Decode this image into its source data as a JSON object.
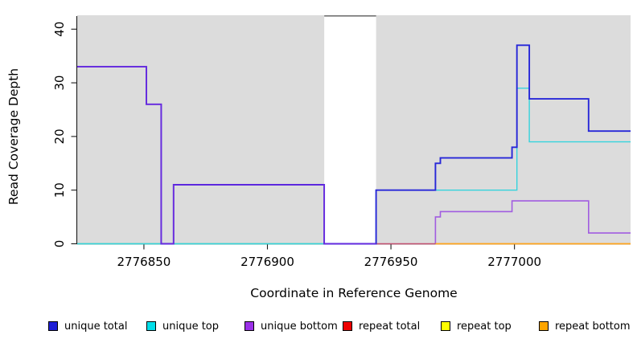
{
  "figure": {
    "x_axis_title": "Coordinate in Reference Genome",
    "y_axis_title": "Read Coverage Depth"
  },
  "legend": {
    "items": [
      {
        "label": "unique total",
        "color": "#1f1fd6"
      },
      {
        "label": "unique top",
        "color": "#00dde8"
      },
      {
        "label": "unique bottom",
        "color": "#9b30e8"
      },
      {
        "label": "repeat total",
        "color": "#ee0000"
      },
      {
        "label": "repeat top",
        "color": "#ffff00"
      },
      {
        "label": "repeat bottom",
        "color": "#ffa500"
      }
    ],
    "item_x": [
      60,
      182,
      304,
      426,
      548,
      670
    ]
  },
  "chart_data": {
    "type": "line",
    "subtype": "step-coverage",
    "title": "",
    "xlabel": "Coordinate in Reference Genome",
    "ylabel": "Read Coverage Depth",
    "xlim": [
      2776823,
      2777047
    ],
    "ylim": [
      0,
      40
    ],
    "x_ticks": [
      2776850,
      2776900,
      2776950,
      2777000
    ],
    "x_tick_labels": [
      "2776850",
      "2776900",
      "2776950",
      "2777000"
    ],
    "y_ticks": [
      0,
      10,
      20,
      30,
      40
    ],
    "y_tick_labels": [
      "0",
      "10",
      "20",
      "30",
      "40"
    ],
    "grid": false,
    "legend_position": "bottom",
    "background": {
      "plot_fill": "#dcdcdc",
      "gap_band": {
        "x_start": 2776923,
        "x_end": 2776944,
        "fill": "#ffffff",
        "top_edge_color": "#737373"
      }
    },
    "series": [
      {
        "name": "repeat top",
        "legend_color": "#ffff00",
        "stroke": "#6abf7d",
        "width": 1.5,
        "opacity": 1,
        "note": "depth 0; overlaps unique top at 0 rendering green",
        "paths": [
          [
            [
              2776823,
              0
            ],
            [
              2776923,
              0
            ]
          ]
        ]
      },
      {
        "name": "repeat total",
        "legend_color": "#ee0000",
        "stroke": "#c24f70",
        "width": 1.4,
        "opacity": 1,
        "note": "depth 0 from 2776944 to 2776968",
        "paths": [
          [
            [
              2776944,
              0
            ],
            [
              2776968,
              0
            ]
          ]
        ]
      },
      {
        "name": "unique top",
        "legend_color": "#00dde8",
        "stroke": "#35d3dd",
        "width": 1.4,
        "opacity": 1,
        "paths": [
          [
            [
              2776823,
              0
            ],
            [
              2776944,
              0
            ],
            [
              2776944,
              10
            ],
            [
              2777001,
              10
            ],
            [
              2777001,
              29
            ],
            [
              2777006,
              29
            ],
            [
              2777006,
              19
            ],
            [
              2777047,
              19
            ]
          ]
        ]
      },
      {
        "name": "unique total",
        "legend_color": "#1f1fd6",
        "stroke": "#2727d8",
        "width": 1.9,
        "opacity": 1,
        "paths": [
          [
            [
              2776823,
              33
            ],
            [
              2776851,
              33
            ],
            [
              2776851,
              26
            ],
            [
              2776857,
              26
            ],
            [
              2776857,
              0
            ],
            [
              2776862,
              0
            ],
            [
              2776862,
              11
            ],
            [
              2776923,
              11
            ],
            [
              2776923,
              0
            ],
            [
              2776944,
              0
            ],
            [
              2776944,
              10
            ],
            [
              2776968,
              10
            ],
            [
              2776968,
              15
            ],
            [
              2776970,
              15
            ],
            [
              2776970,
              16
            ],
            [
              2776999,
              16
            ],
            [
              2776999,
              18
            ],
            [
              2777001,
              18
            ],
            [
              2777001,
              37
            ],
            [
              2777006,
              37
            ],
            [
              2777006,
              27
            ],
            [
              2777030,
              27
            ],
            [
              2777030,
              21
            ],
            [
              2777047,
              21
            ]
          ]
        ]
      },
      {
        "name": "unique bottom",
        "legend_color": "#9b30e8",
        "stroke": "#8a2be2",
        "width": 1.6,
        "opacity": 0.72,
        "paths": [
          [
            [
              2776823,
              33
            ],
            [
              2776851,
              33
            ],
            [
              2776851,
              26
            ],
            [
              2776857,
              26
            ],
            [
              2776857,
              0
            ],
            [
              2776862,
              0
            ],
            [
              2776862,
              11
            ],
            [
              2776923,
              11
            ],
            [
              2776923,
              0
            ],
            [
              2776944,
              0
            ]
          ],
          [
            [
              2776968,
              0
            ],
            [
              2776968,
              5
            ],
            [
              2776970,
              5
            ],
            [
              2776970,
              6
            ],
            [
              2776999,
              6
            ],
            [
              2776999,
              8
            ],
            [
              2777030,
              8
            ],
            [
              2777030,
              2
            ],
            [
              2777047,
              2
            ]
          ]
        ]
      },
      {
        "name": "repeat bottom",
        "legend_color": "#ffa500",
        "stroke": "#ffa41c",
        "width": 1.7,
        "opacity": 1,
        "paths": [
          [
            [
              2776968,
              0
            ],
            [
              2777047,
              0
            ]
          ]
        ]
      }
    ]
  }
}
